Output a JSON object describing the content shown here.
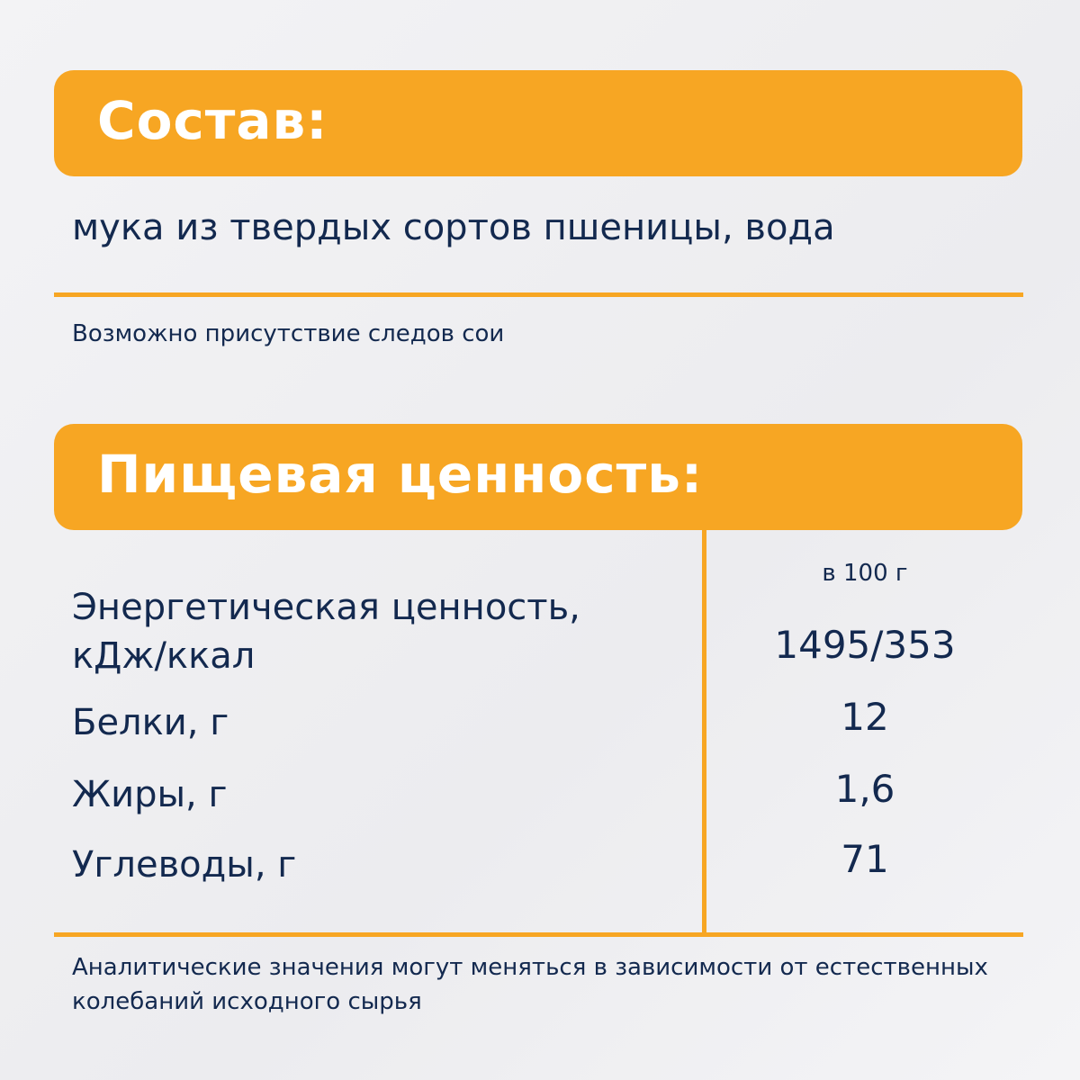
{
  "colors": {
    "accent": "#f7a623",
    "text": "#13294f"
  },
  "composition": {
    "title": "Состав:",
    "ingredients": "мука из твердых сортов пшеницы, вода",
    "allergen_note": "Возможно присутствие следов сои"
  },
  "nutrition": {
    "title": "Пищевая ценность:",
    "column_header": "в 100 г",
    "rows": [
      {
        "label_line1": "Энергетическая ценность,",
        "label_line2": "кДж/ккал",
        "value": "1495/353"
      },
      {
        "label": "Белки, г",
        "value": "12"
      },
      {
        "label": "Жиры, г",
        "value": "1,6"
      },
      {
        "label": "Углеводы, г",
        "value": "71"
      }
    ],
    "footnote_line1": "Аналитические значения могут меняться в зависимости от естественных",
    "footnote_line2": "колебаний исходного сырья"
  }
}
